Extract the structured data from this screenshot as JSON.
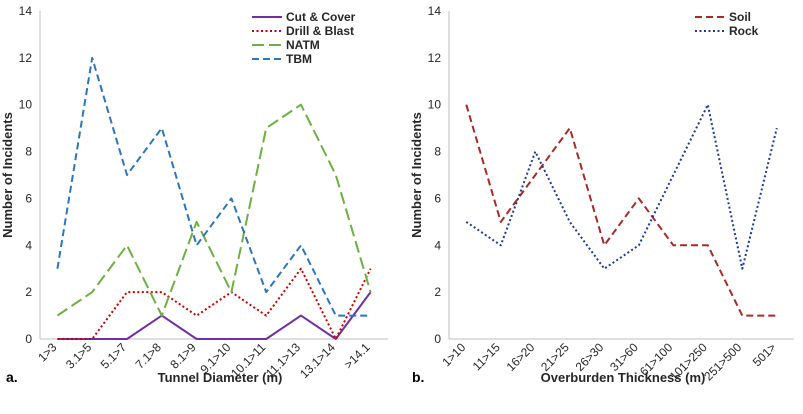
{
  "chart_data": [
    {
      "type": "line",
      "panel_label": "a.",
      "xlabel": "Tunnel Diameter (m)",
      "ylabel": "Number of Incidents",
      "ylim": [
        0,
        14
      ],
      "yticks": [
        0,
        2,
        4,
        6,
        8,
        10,
        12,
        14
      ],
      "grid": false,
      "legend_position": "top-right",
      "categories": [
        "1>3",
        "3.1>5",
        "5.1>7",
        "7.1>8",
        "8.1>9",
        "9.1>10",
        "10.1>11",
        "11.1>13",
        "13.1>14",
        ">14.1"
      ],
      "series": [
        {
          "name": "Cut & Cover",
          "color": "#7030a0",
          "dash": "solid",
          "values": [
            0,
            0,
            0,
            1,
            0,
            0,
            0,
            1,
            0,
            2
          ]
        },
        {
          "name": "Drill & Blast",
          "color": "#c00000",
          "dash": "dotted",
          "values": [
            0,
            0,
            2,
            2,
            1,
            2,
            1,
            3,
            0,
            3
          ]
        },
        {
          "name": "NATM",
          "color": "#70ad47",
          "dash": "longdash",
          "values": [
            1,
            2,
            4,
            1,
            5,
            2,
            9,
            10,
            7,
            2
          ]
        },
        {
          "name": "TBM",
          "color": "#2e75b6",
          "dash": "dash",
          "values": [
            3,
            12,
            7,
            9,
            4,
            6,
            2,
            4,
            1,
            1
          ]
        }
      ]
    },
    {
      "type": "line",
      "panel_label": "b.",
      "xlabel": "Overburden Thickness (m)",
      "ylabel": "Number of Incidents",
      "ylim": [
        0,
        14
      ],
      "yticks": [
        0,
        2,
        4,
        6,
        8,
        10,
        12,
        14
      ],
      "grid": false,
      "legend_position": "top-right",
      "categories": [
        "1>10",
        "11>15",
        "16>20",
        "21>25",
        "26>30",
        "31>60",
        "61>100",
        "101>250",
        "251>500",
        "501>"
      ],
      "series": [
        {
          "name": "Soil",
          "color": "#a52a2a",
          "dash": "dash",
          "values": [
            10,
            5,
            7,
            9,
            4,
            6,
            4,
            4,
            1,
            1
          ]
        },
        {
          "name": "Rock",
          "color": "#1f3a93",
          "dash": "dotted",
          "values": [
            5,
            4,
            8,
            5,
            3,
            4,
            7,
            10,
            3,
            9
          ]
        }
      ]
    }
  ]
}
